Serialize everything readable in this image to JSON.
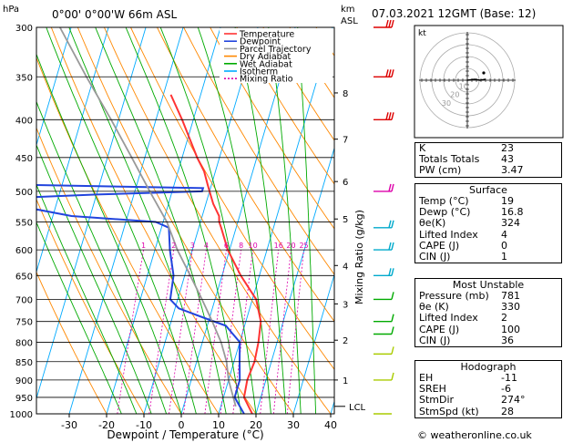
{
  "header": {
    "hpa_label": "hPa",
    "location": "0°00' 0°00'W  66m  ASL",
    "km_label": "km",
    "asl_label": "ASL",
    "datetime": "07.03.2021  12GMT  (Base: 12)",
    "credit": "© weatheronline.co.uk"
  },
  "legend": [
    "Temperature",
    "Dewpoint",
    "Parcel Trajectory",
    "Dry Adiabat",
    "Wet Adiabat",
    "Isotherm",
    "Mixing Ratio"
  ],
  "colors": {
    "temperature": "#ff3333",
    "dewpoint": "#2244dd",
    "parcel": "#999999",
    "dry_adiabat": "#ff8800",
    "wet_adiabat": "#00aa00",
    "isotherm": "#00aaff",
    "mixing_ratio": "#dd00aa",
    "wind": "#00aacc"
  },
  "chart_data": {
    "type": "line",
    "xlabel": "Dewpoint / Temperature (°C)",
    "ylabel_right": "Mixing Ratio (g/kg)",
    "pressure_levels": [
      300,
      350,
      400,
      450,
      500,
      550,
      600,
      650,
      700,
      750,
      800,
      850,
      900,
      950,
      1000
    ],
    "x_ticks": [
      -30,
      -20,
      -10,
      0,
      10,
      20,
      30,
      40
    ],
    "xlim": [
      -40,
      40
    ],
    "ylim": [
      1000,
      300
    ],
    "altitude_km": [
      {
        "km": "1",
        "p": 900
      },
      {
        "km": "2",
        "p": 795
      },
      {
        "km": "3",
        "p": 710
      },
      {
        "km": "4",
        "p": 630
      },
      {
        "km": "5",
        "p": 545
      },
      {
        "km": "6",
        "p": 485
      },
      {
        "km": "7",
        "p": 425
      },
      {
        "km": "8",
        "p": 368
      }
    ],
    "lcl": {
      "label": "LCL",
      "p": 977
    },
    "mixing_ratio_labels": [
      {
        "label": "1",
        "g": 1
      },
      {
        "label": "2",
        "g": 2
      },
      {
        "label": "3",
        "g": 3
      },
      {
        "label": "4",
        "g": 4
      },
      {
        "label": "6",
        "g": 6
      },
      {
        "label": "8",
        "g": 8
      },
      {
        "label": "10",
        "g": 10
      },
      {
        "label": "16",
        "g": 16
      },
      {
        "label": "20",
        "g": 20
      },
      {
        "label": "25",
        "g": 25
      }
    ],
    "series": [
      {
        "name": "Temperature",
        "points": [
          [
            1000,
            19
          ],
          [
            950,
            15.5
          ],
          [
            900,
            15
          ],
          [
            850,
            15.5
          ],
          [
            800,
            15
          ],
          [
            750,
            14
          ],
          [
            700,
            11
          ],
          [
            650,
            5
          ],
          [
            600,
            -0.5
          ],
          [
            560,
            -4
          ],
          [
            550,
            -5
          ],
          [
            540,
            -5.5
          ],
          [
            520,
            -8
          ],
          [
            500,
            -10
          ],
          [
            490,
            -11
          ],
          [
            470,
            -13
          ],
          [
            450,
            -16
          ],
          [
            400,
            -23
          ],
          [
            370,
            -28
          ]
        ]
      },
      {
        "name": "Dewpoint",
        "points": [
          [
            1000,
            16.8
          ],
          [
            950,
            13
          ],
          [
            900,
            13
          ],
          [
            850,
            11.5
          ],
          [
            800,
            10
          ],
          [
            760,
            5
          ],
          [
            740,
            -2
          ],
          [
            720,
            -9
          ],
          [
            700,
            -12
          ],
          [
            650,
            -13
          ],
          [
            600,
            -16
          ],
          [
            560,
            -18
          ],
          [
            550,
            -22
          ],
          [
            540,
            -45
          ],
          [
            520,
            -63
          ],
          [
            510,
            -60
          ],
          [
            505,
            -40
          ],
          [
            500,
            -12
          ],
          [
            495,
            -12
          ],
          [
            490,
            -60
          ],
          [
            450,
            -63
          ],
          [
            400,
            -68
          ],
          [
            370,
            -76
          ],
          [
            300,
            -92
          ]
        ]
      },
      {
        "name": "Parcel Trajectory",
        "points": [
          [
            977,
            14
          ],
          [
            900,
            10
          ],
          [
            850,
            8
          ],
          [
            800,
            5
          ],
          [
            750,
            1
          ],
          [
            700,
            -3.5
          ],
          [
            650,
            -8.5
          ],
          [
            600,
            -14
          ],
          [
            550,
            -19
          ],
          [
            500,
            -26
          ],
          [
            450,
            -33.5
          ],
          [
            400,
            -42
          ],
          [
            350,
            -52
          ],
          [
            300,
            -63
          ]
        ]
      }
    ]
  },
  "hodograph": {
    "label": "kt",
    "rings": [
      10,
      20,
      30,
      40
    ],
    "ring_labels": [
      "10",
      "20",
      "30"
    ]
  },
  "indices": [
    {
      "name": "K",
      "value": "23"
    },
    {
      "name": "Totals Totals",
      "value": "43"
    },
    {
      "name": "PW (cm)",
      "value": "3.47"
    }
  ],
  "surface": {
    "title": "Surface",
    "rows": [
      {
        "name": "Temp (°C)",
        "value": "19"
      },
      {
        "name": "Dewp (°C)",
        "value": "16.8"
      },
      {
        "name": "θe(K)",
        "value": "324"
      },
      {
        "name": "Lifted Index",
        "value": "4"
      },
      {
        "name": "CAPE (J)",
        "value": "0"
      },
      {
        "name": "CIN (J)",
        "value": "1"
      }
    ]
  },
  "most_unstable": {
    "title": "Most Unstable",
    "rows": [
      {
        "name": "Pressure (mb)",
        "value": "781"
      },
      {
        "name": "θe (K)",
        "value": "330"
      },
      {
        "name": "Lifted Index",
        "value": "2"
      },
      {
        "name": "CAPE (J)",
        "value": "100"
      },
      {
        "name": "CIN (J)",
        "value": "36"
      }
    ]
  },
  "hodo_table": {
    "title": "Hodograph",
    "rows": [
      {
        "name": "EH",
        "value": "-11"
      },
      {
        "name": "SREH",
        "value": "-6"
      },
      {
        "name": "StmDir",
        "value": "274°"
      },
      {
        "name": "StmSpd (kt)",
        "value": "28"
      }
    ]
  }
}
